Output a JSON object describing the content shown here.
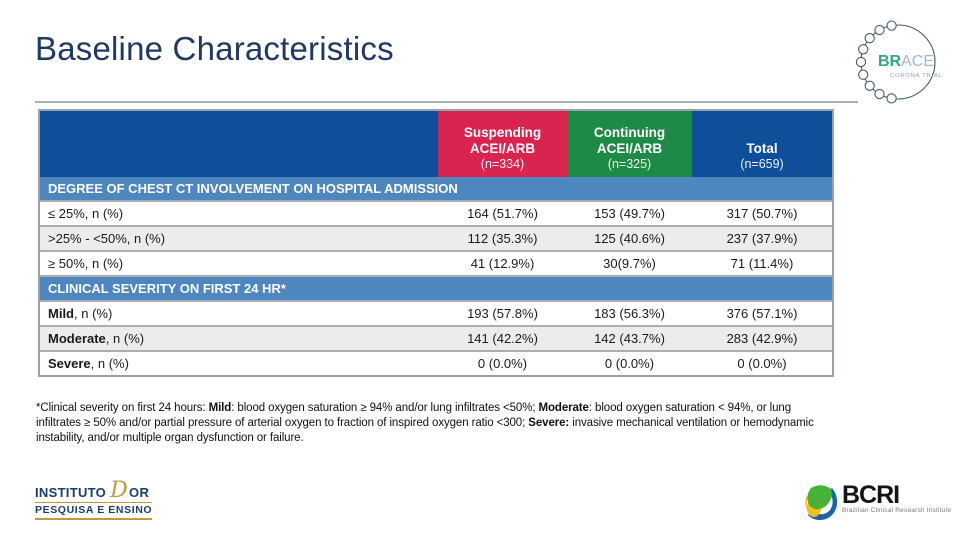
{
  "slide": {
    "title": "Baseline Characteristics"
  },
  "colors": {
    "suspending": "#D92450",
    "continuing": "#1E8A47",
    "total": "#0F4E99",
    "section_header": "#4E86C0",
    "title_navy": "#1F3864",
    "row_alt": "#ececec"
  },
  "table": {
    "columns": [
      {
        "label_lines": [
          "Suspending",
          "ACEI/ARB"
        ],
        "n": "(n=334)",
        "color": "#D92450"
      },
      {
        "label_lines": [
          "Continuing",
          "ACEI/ARB"
        ],
        "n": "(n=325)",
        "color": "#1E8A47"
      },
      {
        "label_lines": [
          "Total"
        ],
        "n": "(n=659)",
        "color": "#0F4E99"
      }
    ],
    "sections": [
      {
        "header": "DEGREE OF CHEST CT INVOLVEMENT ON HOSPITAL ADMISSION",
        "rows": [
          {
            "label_bold": "",
            "label_rest": "≤ 25%, n (%)",
            "values": [
              "164 (51.7%)",
              "153 (49.7%)",
              "317 (50.7%)"
            ]
          },
          {
            "label_bold": "",
            "label_rest": ">25% - <50%, n (%)",
            "values": [
              "112 (35.3%)",
              "125 (40.6%)",
              "237 (37.9%)"
            ]
          },
          {
            "label_bold": "",
            "label_rest": "≥ 50%, n (%)",
            "values": [
              "41 (12.9%)",
              "30(9.7%)",
              "71 (11.4%)"
            ]
          }
        ]
      },
      {
        "header": "CLINICAL SEVERITY ON FIRST 24 HR*",
        "rows": [
          {
            "label_bold": "Mild",
            "label_rest": ", n (%)",
            "values": [
              "193 (57.8%)",
              "183 (56.3%)",
              "376 (57.1%)"
            ]
          },
          {
            "label_bold": "Moderate",
            "label_rest": ", n (%)",
            "values": [
              "141 (42.2%)",
              "142 (43.7%)",
              "283 (42.9%)"
            ]
          },
          {
            "label_bold": "Severe",
            "label_rest": ", n (%)",
            "values": [
              "0 (0.0%)",
              "0 (0.0%)",
              "0 (0.0%)"
            ]
          }
        ]
      }
    ]
  },
  "footnote": {
    "segments": [
      {
        "text": "*Clinical severity on first 24 hours: ",
        "bold": false
      },
      {
        "text": "Mild",
        "bold": true
      },
      {
        "text": ": blood oxygen saturation ≥ 94% and/or lung infiltrates <50%; ",
        "bold": false
      },
      {
        "text": "Moderate",
        "bold": true
      },
      {
        "text": ": blood oxygen saturation < 94%, or lung infiltrates ≥ 50% and/or partial pressure of arterial oxygen to fraction of inspired oxygen ratio <300; ",
        "bold": false
      },
      {
        "text": "Severe:",
        "bold": true
      },
      {
        "text": " invasive mechanical ventilation or hemodynamic instability, and/or multiple organ dysfunction or failure.",
        "bold": false
      }
    ]
  },
  "logos": {
    "brace": {
      "part_green": "BR",
      "part_gray": "ACE",
      "subtitle": "CORONA TRIAL"
    },
    "idor": {
      "word1": "INSTITUTO",
      "script_d": "D",
      "word2": "OR",
      "line2": "PESQUISA E ENSINO"
    },
    "bcri": {
      "name": "BCRI",
      "subtitle": "Brazilian Clinical Research Institute"
    }
  }
}
